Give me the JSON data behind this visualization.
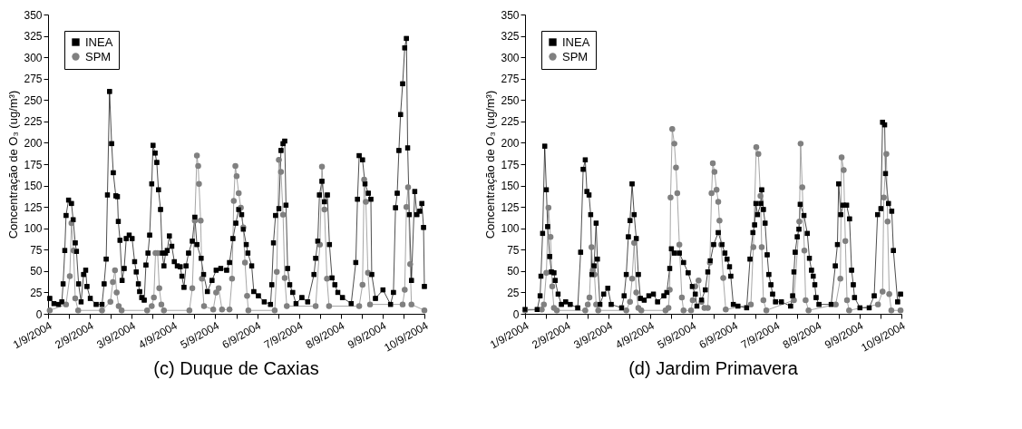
{
  "chart_data": [
    {
      "type": "line",
      "title": "(c) Duque de Caxias",
      "ylabel": "Concentração de O₃ (ug/m³)",
      "xlim": [
        "2004-09-01",
        "2004-09-10"
      ],
      "ylim": [
        0,
        350
      ],
      "xticks": [
        {
          "value": "2004-09-01",
          "label": "1/9/2004"
        },
        {
          "value": "2004-09-01T12:00",
          "label": null
        },
        {
          "value": "2004-09-02",
          "label": "2/9/2004"
        },
        {
          "value": "2004-09-02T12:00",
          "label": null
        },
        {
          "value": "2004-09-03",
          "label": "3/9/2004"
        },
        {
          "value": "2004-09-03T12:00",
          "label": null
        },
        {
          "value": "2004-09-04",
          "label": "4/9/2004"
        },
        {
          "value": "2004-09-04T12:00",
          "label": null
        },
        {
          "value": "2004-09-05",
          "label": "5/9/2004"
        },
        {
          "value": "2004-09-05T12:00",
          "label": null
        },
        {
          "value": "2004-09-06",
          "label": "6/9/2004"
        },
        {
          "value": "2004-09-06T12:00",
          "label": null
        },
        {
          "value": "2004-09-07",
          "label": "7/9/2004"
        },
        {
          "value": "2004-09-07T12:00",
          "label": null
        },
        {
          "value": "2004-09-08",
          "label": "8/9/2004"
        },
        {
          "value": "2004-09-08T12:00",
          "label": null
        },
        {
          "value": "2004-09-09",
          "label": "9/9/2004"
        },
        {
          "value": "2004-09-09T12:00",
          "label": null
        },
        {
          "value": "2004-09-10",
          "label": "10/9/2004"
        }
      ],
      "yticks": [
        0,
        25,
        50,
        75,
        100,
        125,
        150,
        175,
        200,
        225,
        250,
        275,
        300,
        325,
        350
      ],
      "grid": false,
      "legend": "top left",
      "series": [
        {
          "name": "INEA",
          "color": "#000000",
          "marker": "square",
          "x": [
            "2004-09-01T00:58",
            "2004-09-01T03:22",
            "2004-09-01T06:00",
            "2004-09-01T07:55",
            "2004-09-01T08:38",
            "2004-09-01T09:36",
            "2004-09-01T10:19",
            "2004-09-01T11:46",
            "2004-09-01T13:26",
            "2004-09-01T14:24",
            "2004-09-01T15:36",
            "2004-09-01T16:19",
            "2004-09-01T17:31",
            "2004-09-01T18:58",
            "2004-09-01T20:24",
            "2004-09-01T21:36",
            "2004-09-01T22:19",
            "2004-09-02T00:14",
            "2004-09-02T03:36",
            "2004-09-02T06:58",
            "2004-09-02T08:10",
            "2004-09-02T09:22",
            "2004-09-02T10:05",
            "2004-09-02T11:17",
            "2004-09-02T12:29",
            "2004-09-02T13:26",
            "2004-09-02T14:53",
            "2004-09-02T15:50",
            "2004-09-02T16:19",
            "2004-09-02T17:17",
            "2004-09-02T18:29",
            "2004-09-02T19:41",
            "2004-09-02T20:53",
            "2004-09-02T22:34",
            "2004-09-03T00:14",
            "2004-09-03T01:41",
            "2004-09-03T02:38",
            "2004-09-03T03:50",
            "2004-09-03T04:34",
            "2004-09-03T05:46",
            "2004-09-03T07:12",
            "2004-09-03T08:10",
            "2004-09-03T09:22",
            "2004-09-03T10:19",
            "2004-09-03T11:31",
            "2004-09-03T12:14",
            "2004-09-03T13:26",
            "2004-09-03T14:24",
            "2004-09-03T15:22",
            "2004-09-03T16:34",
            "2004-09-03T17:31",
            "2004-09-03T18:29",
            "2004-09-03T19:26",
            "2004-09-03T20:24",
            "2004-09-03T21:36",
            "2004-09-03T23:02",
            "2004-09-04T00:29",
            "2004-09-04T02:10",
            "2004-09-04T03:50",
            "2004-09-04T04:48",
            "2004-09-04T06:00",
            "2004-09-04T07:12",
            "2004-09-04T08:38",
            "2004-09-04T10:48",
            "2004-09-04T12:14",
            "2004-09-04T13:26",
            "2004-09-04T15:50",
            "2004-09-04T17:17",
            "2004-09-04T19:26",
            "2004-09-04T22:05",
            "2004-09-05T00:29",
            "2004-09-05T03:07",
            "2004-09-05T06:29",
            "2004-09-05T08:10",
            "2004-09-05T10:05",
            "2004-09-05T11:46",
            "2004-09-05T13:26",
            "2004-09-05T15:07",
            "2004-09-05T16:05",
            "2004-09-05T17:46",
            "2004-09-05T18:43",
            "2004-09-05T20:53",
            "2004-09-05T22:05",
            "2004-09-06T00:43",
            "2004-09-06T04:05",
            "2004-09-06T07:41",
            "2004-09-06T08:24",
            "2004-09-06T09:22",
            "2004-09-06T10:34",
            "2004-09-06T12:29",
            "2004-09-06T13:41",
            "2004-09-06T14:53",
            "2004-09-06T15:50",
            "2004-09-06T16:34",
            "2004-09-06T17:31",
            "2004-09-06T18:43",
            "2004-09-06T20:24",
            "2004-09-06T22:19",
            "2004-09-07T01:41",
            "2004-09-07T05:02",
            "2004-09-07T08:38",
            "2004-09-07T09:36",
            "2004-09-07T10:48",
            "2004-09-07T11:46",
            "2004-09-07T13:12",
            "2004-09-07T14:38",
            "2004-09-07T16:19",
            "2004-09-07T17:31",
            "2004-09-07T18:58",
            "2004-09-07T20:38",
            "2004-09-07T22:19",
            "2004-09-08T00:58",
            "2004-09-08T06:00",
            "2004-09-08T08:38",
            "2004-09-08T09:36",
            "2004-09-08T10:34",
            "2004-09-08T12:29",
            "2004-09-08T13:55",
            "2004-09-08T15:50",
            "2004-09-08T17:17",
            "2004-09-08T17:46",
            "2004-09-08T19:55",
            "2004-09-09T00:14",
            "2004-09-09T04:34",
            "2004-09-09T06:14",
            "2004-09-09T07:26",
            "2004-09-09T08:24",
            "2004-09-09T09:22",
            "2004-09-09T10:19",
            "2004-09-09T11:31",
            "2004-09-09T12:43",
            "2004-09-09T13:41",
            "2004-09-09T14:24",
            "2004-09-09T15:22",
            "2004-09-09T16:34",
            "2004-09-09T18:29",
            "2004-09-09T19:41",
            "2004-09-09T21:22",
            "2004-09-09T22:34",
            "2004-09-09T23:31",
            "2004-09-10T00:00"
          ],
          "values": [
            18,
            12,
            11,
            14,
            35,
            74,
            115,
            133,
            129,
            110,
            83,
            73,
            35,
            14,
            46,
            51,
            32,
            18,
            11,
            11,
            35,
            64,
            139,
            260,
            199,
            165,
            138,
            137,
            108,
            86,
            39,
            53,
            88,
            92,
            88,
            61,
            49,
            35,
            26,
            19,
            16,
            57,
            71,
            92,
            152,
            197,
            188,
            177,
            145,
            122,
            71,
            56,
            71,
            74,
            91,
            79,
            61,
            56,
            55,
            44,
            31,
            56,
            71,
            85,
            113,
            81,
            65,
            46,
            26,
            39,
            51,
            53,
            51,
            60,
            88,
            106,
            122,
            116,
            99,
            81,
            71,
            56,
            26,
            21,
            14,
            11,
            34,
            83,
            115,
            123,
            191,
            199,
            202,
            127,
            53,
            34,
            25,
            12,
            19,
            14,
            46,
            65,
            85,
            139,
            155,
            131,
            139,
            81,
            42,
            34,
            25,
            19,
            12,
            60,
            134,
            185,
            180,
            152,
            141,
            134,
            46,
            18,
            28,
            11,
            25,
            124,
            141,
            191,
            233,
            269,
            311,
            322,
            194,
            116,
            39,
            143,
            116,
            120,
            129,
            101,
            32
          ]
        },
        {
          "name": "SPM",
          "color": "#808080",
          "marker": "circle",
          "x": [
            "2004-09-01T00:58",
            "2004-09-01T10:19",
            "2004-09-01T12:29",
            "2004-09-01T13:26",
            "2004-09-01T14:38",
            "2004-09-01T15:36",
            "2004-09-01T17:17",
            "2004-09-02T06:58",
            "2004-09-02T11:46",
            "2004-09-02T13:12",
            "2004-09-02T14:24",
            "2004-09-02T15:22",
            "2004-09-02T16:34",
            "2004-09-02T18:14",
            "2004-09-03T08:53",
            "2004-09-03T11:31",
            "2004-09-03T12:43",
            "2004-09-03T13:41",
            "2004-09-03T14:53",
            "2004-09-03T15:50",
            "2004-09-03T17:02",
            "2004-09-03T18:29",
            "2004-09-04T09:07",
            "2004-09-04T10:48",
            "2004-09-04T12:14",
            "2004-09-04T13:26",
            "2004-09-04T14:10",
            "2004-09-04T14:38",
            "2004-09-04T15:36",
            "2004-09-04T16:19",
            "2004-09-04T17:31",
            "2004-09-04T22:48",
            "2004-09-05T00:29",
            "2004-09-05T01:55",
            "2004-09-05T03:50",
            "2004-09-05T08:10",
            "2004-09-05T09:36",
            "2004-09-05T10:34",
            "2004-09-05T11:31",
            "2004-09-05T12:14",
            "2004-09-05T13:26",
            "2004-09-05T14:38",
            "2004-09-05T16:05",
            "2004-09-05T17:02",
            "2004-09-05T18:14",
            "2004-09-05T18:58",
            "2004-09-06T10:05",
            "2004-09-06T11:17",
            "2004-09-06T12:29",
            "2004-09-06T13:41",
            "2004-09-06T14:53",
            "2004-09-06T15:50",
            "2004-09-06T17:02",
            "2004-09-07T09:36",
            "2004-09-07T12:00",
            "2004-09-07T13:12",
            "2004-09-07T14:38",
            "2004-09-07T16:05",
            "2004-09-07T17:17",
            "2004-09-08T10:34",
            "2004-09-08T12:29",
            "2004-09-08T13:26",
            "2004-09-08T14:24",
            "2004-09-08T15:36",
            "2004-09-08T16:48",
            "2004-09-09T11:31",
            "2004-09-09T12:43",
            "2004-09-09T13:41",
            "2004-09-09T14:38",
            "2004-09-09T15:50",
            "2004-09-09T16:34",
            "2004-09-10T00:00"
          ],
          "values": [
            4,
            11,
            44,
            106,
            74,
            18,
            4,
            4,
            14,
            37,
            51,
            25,
            9,
            4,
            4,
            9,
            19,
            71,
            71,
            30,
            11,
            4,
            4,
            30,
            109,
            185,
            173,
            152,
            109,
            41,
            9,
            5,
            25,
            30,
            5,
            5,
            41,
            132,
            173,
            161,
            141,
            124,
            101,
            60,
            21,
            4,
            4,
            49,
            180,
            166,
            116,
            42,
            9,
            9,
            81,
            172,
            122,
            41,
            9,
            9,
            34,
            157,
            131,
            48,
            11,
            11,
            28,
            125,
            148,
            58,
            11,
            4
          ]
        }
      ]
    },
    {
      "type": "line",
      "title": "(d) Jardim Primavera",
      "ylabel": "Concentração de O₃ (ug/m³)",
      "xlim": [
        "2004-09-01",
        "2004-09-10"
      ],
      "ylim": [
        0,
        350
      ],
      "xticks": [
        {
          "value": "2004-09-01",
          "label": "1/9/2004"
        },
        {
          "value": "2004-09-01T12:00",
          "label": null
        },
        {
          "value": "2004-09-02",
          "label": "2/9/2004"
        },
        {
          "value": "2004-09-02T12:00",
          "label": null
        },
        {
          "value": "2004-09-03",
          "label": "3/9/2004"
        },
        {
          "value": "2004-09-03T12:00",
          "label": null
        },
        {
          "value": "2004-09-04",
          "label": "4/9/2004"
        },
        {
          "value": "2004-09-04T12:00",
          "label": null
        },
        {
          "value": "2004-09-05",
          "label": "5/9/2004"
        },
        {
          "value": "2004-09-05T12:00",
          "label": null
        },
        {
          "value": "2004-09-06",
          "label": "6/9/2004"
        },
        {
          "value": "2004-09-06T12:00",
          "label": null
        },
        {
          "value": "2004-09-07",
          "label": "7/9/2004"
        },
        {
          "value": "2004-09-07T12:00",
          "label": null
        },
        {
          "value": "2004-09-08",
          "label": "8/9/2004"
        },
        {
          "value": "2004-09-08T12:00",
          "label": null
        },
        {
          "value": "2004-09-09",
          "label": "9/9/2004"
        },
        {
          "value": "2004-09-09T12:00",
          "label": null
        },
        {
          "value": "2004-09-10",
          "label": "10/9/2004"
        }
      ],
      "yticks": [
        0,
        25,
        50,
        75,
        100,
        125,
        150,
        175,
        200,
        225,
        250,
        275,
        300,
        325,
        350
      ],
      "grid": false,
      "legend": "top left",
      "series": [
        {
          "name": "INEA",
          "color": "#000000",
          "marker": "square",
          "x": [
            "2004-09-01T00:00",
            "2004-09-01T06:58",
            "2004-09-01T08:38",
            "2004-09-01T09:07",
            "2004-09-01T10:05",
            "2004-09-01T11:17",
            "2004-09-01T12:14",
            "2004-09-01T12:58",
            "2004-09-01T14:10",
            "2004-09-01T15:07",
            "2004-09-01T16:34",
            "2004-09-01T17:17",
            "2004-09-01T18:58",
            "2004-09-01T20:53",
            "2004-09-01T23:17",
            "2004-09-02T01:55",
            "2004-09-02T06:14",
            "2004-09-02T07:55",
            "2004-09-02T09:22",
            "2004-09-02T10:34",
            "2004-09-02T11:31",
            "2004-09-02T12:43",
            "2004-09-02T13:41",
            "2004-09-02T14:24",
            "2004-09-02T15:36",
            "2004-09-02T16:48",
            "2004-09-02T17:31",
            "2004-09-02T18:58",
            "2004-09-02T21:07",
            "2004-09-02T23:31",
            "2004-09-03T01:26",
            "2004-09-03T07:26",
            "2004-09-03T08:53",
            "2004-09-03T10:05",
            "2004-09-03T11:17",
            "2004-09-03T12:14",
            "2004-09-03T13:26",
            "2004-09-03T14:38",
            "2004-09-03T15:50",
            "2004-09-03T17:02",
            "2004-09-03T18:14",
            "2004-09-03T20:24",
            "2004-09-03T23:02",
            "2004-09-04T01:41",
            "2004-09-04T04:05",
            "2004-09-04T07:41",
            "2004-09-04T09:22",
            "2004-09-04T11:02",
            "2004-09-04T12:00",
            "2004-09-04T13:41",
            "2004-09-04T16:34",
            "2004-09-04T18:58",
            "2004-09-04T21:36",
            "2004-09-05T00:00",
            "2004-09-05T01:41",
            "2004-09-05T02:38",
            "2004-09-05T05:17",
            "2004-09-05T07:26",
            "2004-09-05T08:53",
            "2004-09-05T10:19",
            "2004-09-05T12:14",
            "2004-09-05T14:53",
            "2004-09-05T17:02",
            "2004-09-05T18:43",
            "2004-09-05T19:55",
            "2004-09-05T21:22",
            "2004-09-05T22:05",
            "2004-09-05T23:31",
            "2004-09-06T02:10",
            "2004-09-06T07:12",
            "2004-09-06T09:07",
            "2004-09-06T10:48",
            "2004-09-06T11:46",
            "2004-09-06T12:29",
            "2004-09-06T13:26",
            "2004-09-06T15:22",
            "2004-09-06T15:50",
            "2004-09-06T16:48",
            "2004-09-06T17:46",
            "2004-09-06T18:58",
            "2004-09-06T19:55",
            "2004-09-06T21:07",
            "2004-09-06T22:05",
            "2004-09-06T23:46",
            "2004-09-07T03:07",
            "2004-09-07T08:24",
            "2004-09-07T09:36",
            "2004-09-07T10:19",
            "2004-09-07T11:02",
            "2004-09-07T12:14",
            "2004-09-07T13:12",
            "2004-09-07T13:55",
            "2004-09-07T16:05",
            "2004-09-07T18:00",
            "2004-09-07T19:12",
            "2004-09-07T20:24",
            "2004-09-07T21:22",
            "2004-09-07T22:19",
            "2004-09-07T23:02",
            "2004-09-08T00:43",
            "2004-09-08T07:41",
            "2004-09-08T10:05",
            "2004-09-08T11:17",
            "2004-09-08T12:00",
            "2004-09-08T13:12",
            "2004-09-08T14:38",
            "2004-09-08T16:34",
            "2004-09-08T18:14",
            "2004-09-08T19:26",
            "2004-09-08T20:24",
            "2004-09-08T21:07",
            "2004-09-09T00:14",
            "2004-09-09T05:31",
            "2004-09-09T08:24",
            "2004-09-09T10:19",
            "2004-09-09T12:14",
            "2004-09-09T13:12",
            "2004-09-09T14:24",
            "2004-09-09T14:53",
            "2004-09-09T16:34",
            "2004-09-09T18:29",
            "2004-09-09T19:26",
            "2004-09-09T21:50",
            "2004-09-09T23:31"
          ],
          "values": [
            5,
            5,
            21,
            44,
            94,
            196,
            145,
            102,
            67,
            49,
            48,
            39,
            23,
            11,
            14,
            11,
            7,
            72,
            169,
            180,
            143,
            139,
            116,
            46,
            56,
            106,
            64,
            11,
            23,
            30,
            11,
            7,
            21,
            46,
            90,
            109,
            152,
            116,
            88,
            46,
            18,
            16,
            21,
            23,
            14,
            21,
            25,
            53,
            76,
            71,
            71,
            60,
            48,
            32,
            23,
            9,
            16,
            28,
            49,
            62,
            81,
            95,
            81,
            71,
            64,
            55,
            44,
            11,
            9,
            7,
            64,
            95,
            104,
            129,
            116,
            129,
            145,
            122,
            106,
            69,
            46,
            34,
            23,
            14,
            14,
            9,
            21,
            49,
            72,
            90,
            99,
            128,
            115,
            94,
            65,
            51,
            44,
            34,
            19,
            11,
            11,
            56,
            81,
            152,
            116,
            127,
            127,
            111,
            51,
            34,
            19,
            7,
            7,
            21,
            116,
            123,
            224,
            221,
            164,
            129,
            120,
            74,
            14,
            23
          ]
        },
        {
          "name": "SPM",
          "color": "#808080",
          "marker": "circle",
          "x": [
            "2004-09-01T00:00",
            "2004-09-01T09:36",
            "2004-09-01T10:48",
            "2004-09-01T12:14",
            "2004-09-01T13:26",
            "2004-09-01T14:38",
            "2004-09-01T15:36",
            "2004-09-01T16:34",
            "2004-09-01T18:14",
            "2004-09-02T10:34",
            "2004-09-02T12:00",
            "2004-09-02T12:58",
            "2004-09-02T14:10",
            "2004-09-02T14:53",
            "2004-09-02T15:50",
            "2004-09-02T16:48",
            "2004-09-02T18:00",
            "2004-09-03T10:05",
            "2004-09-03T12:14",
            "2004-09-03T13:26",
            "2004-09-03T14:38",
            "2004-09-03T15:50",
            "2004-09-03T17:02",
            "2004-09-03T18:43",
            "2004-09-04T08:38",
            "2004-09-04T10:19",
            "2004-09-04T11:02",
            "2004-09-04T11:31",
            "2004-09-04T12:29",
            "2004-09-04T13:41",
            "2004-09-04T14:38",
            "2004-09-04T15:22",
            "2004-09-04T16:34",
            "2004-09-04T18:00",
            "2004-09-04T18:58",
            "2004-09-04T23:17",
            "2004-09-05T00:14",
            "2004-09-05T01:41",
            "2004-09-05T03:36",
            "2004-09-05T05:17",
            "2004-09-05T06:58",
            "2004-09-05T08:53",
            "2004-09-05T10:05",
            "2004-09-05T11:02",
            "2004-09-05T11:46",
            "2004-09-05T12:43",
            "2004-09-05T13:55",
            "2004-09-05T14:53",
            "2004-09-05T15:36",
            "2004-09-05T16:34",
            "2004-09-05T17:46",
            "2004-09-05T19:12",
            "2004-09-06T09:36",
            "2004-09-06T11:02",
            "2004-09-06T12:43",
            "2004-09-06T13:55",
            "2004-09-06T15:07",
            "2004-09-06T15:50",
            "2004-09-06T16:48",
            "2004-09-06T18:29",
            "2004-09-07T10:19",
            "2004-09-07T13:26",
            "2004-09-07T14:10",
            "2004-09-07T15:07",
            "2004-09-07T16:19",
            "2004-09-07T17:02",
            "2004-09-07T18:43",
            "2004-09-08T10:19",
            "2004-09-08T12:58",
            "2004-09-08T13:41",
            "2004-09-08T14:53",
            "2004-09-08T15:50",
            "2004-09-08T16:48",
            "2004-09-08T18:00",
            "2004-09-09T10:34",
            "2004-09-09T13:12",
            "2004-09-09T13:55",
            "2004-09-09T15:22",
            "2004-09-09T16:05",
            "2004-09-09T17:02",
            "2004-09-09T18:14",
            "2004-09-09T23:31"
          ],
          "values": [
            4,
            5,
            11,
            48,
            124,
            90,
            32,
            7,
            4,
            4,
            11,
            19,
            78,
            51,
            46,
            11,
            4,
            4,
            14,
            41,
            83,
            25,
            7,
            4,
            4,
            7,
            28,
            136,
            216,
            199,
            171,
            141,
            81,
            19,
            4,
            4,
            16,
            32,
            39,
            14,
            7,
            7,
            60,
            141,
            176,
            166,
            145,
            131,
            109,
            81,
            42,
            5,
            11,
            78,
            195,
            187,
            138,
            78,
            16,
            4,
            16,
            108,
            199,
            148,
            74,
            16,
            4,
            11,
            41,
            183,
            168,
            85,
            16,
            4,
            11,
            26,
            136,
            187,
            108,
            23,
            4,
            4
          ]
        }
      ]
    }
  ]
}
